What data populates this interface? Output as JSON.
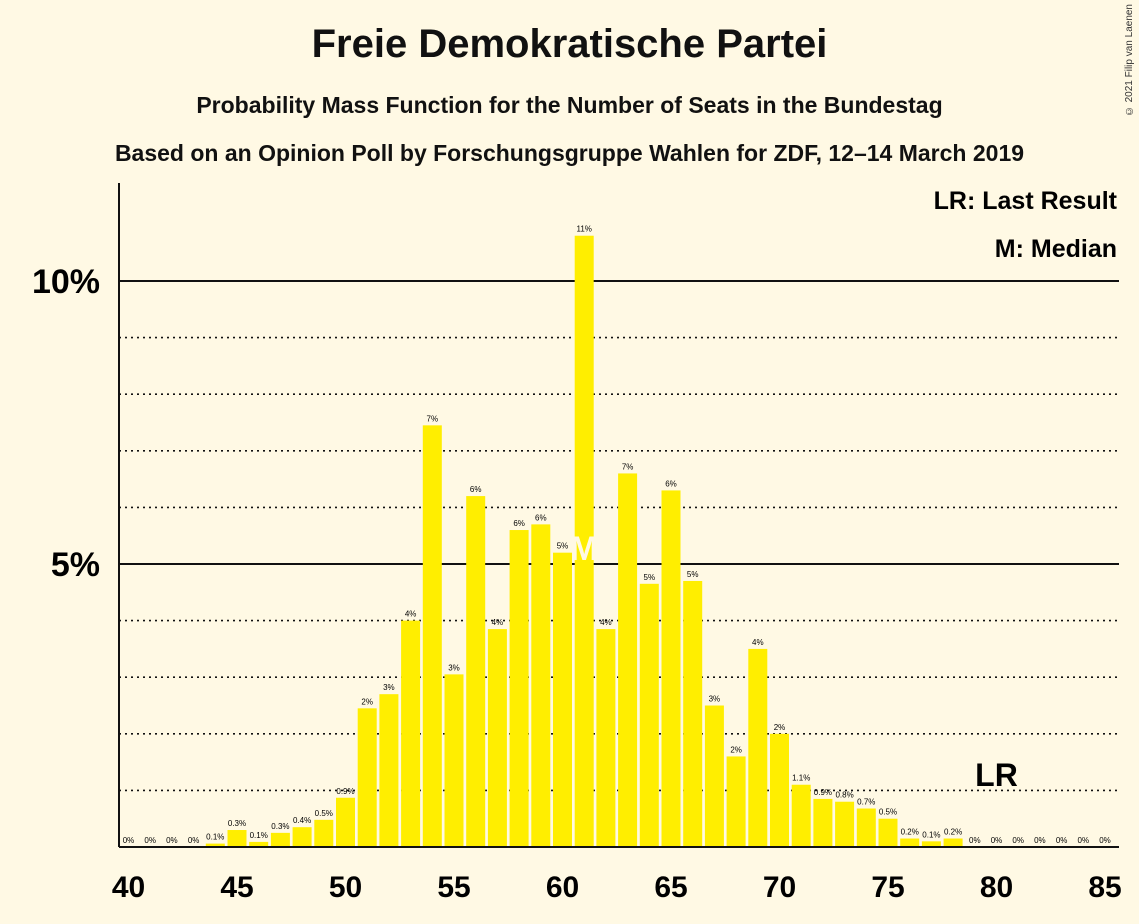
{
  "title": "Freie Demokratische Partei",
  "subtitle": "Probability Mass Function for the Number of Seats in the Bundestag",
  "subtitle2": "Based on an Opinion Poll by Forschungsgruppe Wahlen for ZDF, 12–14 March 2019",
  "copyright": "© 2021 Filip van Laenen",
  "legend": {
    "last_result": "LR: Last Result",
    "median": "M: Median"
  },
  "colors": {
    "bar": "#FFEE00",
    "background": "#FFF9E4",
    "axis": "#111111"
  },
  "chart_data": {
    "type": "bar",
    "title": "Freie Demokratische Partei",
    "xlabel": "",
    "ylabel": "",
    "xlim": [
      40,
      85
    ],
    "ylim": [
      0,
      11.5
    ],
    "x_ticks": [
      "40",
      "45",
      "50",
      "55",
      "60",
      "65",
      "70",
      "75",
      "80",
      "85"
    ],
    "y_ticks": [
      {
        "value": 5,
        "label": "5%"
      },
      {
        "value": 10,
        "label": "10%"
      }
    ],
    "minor_gridlines": [
      1,
      2,
      3,
      4,
      6,
      7,
      8,
      9
    ],
    "x": [
      40,
      41,
      42,
      43,
      44,
      45,
      46,
      47,
      48,
      49,
      50,
      51,
      52,
      53,
      54,
      55,
      56,
      57,
      58,
      59,
      60,
      61,
      62,
      63,
      64,
      65,
      66,
      67,
      68,
      69,
      70,
      71,
      72,
      73,
      74,
      75,
      76,
      77,
      78,
      79,
      80,
      81,
      82,
      83,
      84,
      85
    ],
    "values": [
      0,
      0,
      0,
      0,
      0.06,
      0.3,
      0.09,
      0.25,
      0.35,
      0.48,
      0.87,
      2.45,
      2.7,
      4.0,
      7.45,
      3.05,
      6.2,
      3.85,
      5.6,
      5.7,
      5.2,
      10.8,
      3.85,
      6.6,
      4.65,
      6.3,
      4.7,
      2.5,
      1.6,
      3.5,
      2.0,
      1.1,
      0.85,
      0.8,
      0.68,
      0.5,
      0.15,
      0.1,
      0.15,
      0,
      0,
      0,
      0,
      0,
      0,
      0
    ],
    "labels": [
      "0%",
      "0%",
      "0%",
      "0%",
      "0.1%",
      "0.3%",
      "0.1%",
      "0.3%",
      "0.4%",
      "0.5%",
      "0.9%",
      "2%",
      "3%",
      "4%",
      "7%",
      "3%",
      "6%",
      "4%",
      "6%",
      "6%",
      "5%",
      "11%",
      "4%",
      "7%",
      "5%",
      "6%",
      "5%",
      "3%",
      "2%",
      "4%",
      "2%",
      "1.1%",
      "0.9%",
      "0.8%",
      "0.7%",
      "0.5%",
      "0.2%",
      "0.1%",
      "0.2%",
      "0%",
      "0%",
      "0%",
      "0%",
      "0%",
      "0%",
      "0%"
    ],
    "median": 61,
    "last_result": 80,
    "median_marker": "M",
    "last_result_marker": "LR"
  }
}
